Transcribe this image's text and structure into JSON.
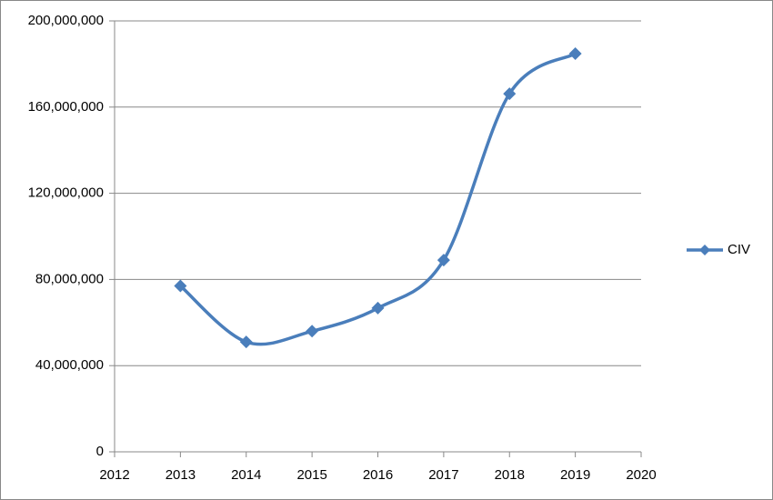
{
  "chart_data": {
    "type": "line",
    "x": [
      2013,
      2014,
      2015,
      2016,
      2017,
      2018,
      2019
    ],
    "series": [
      {
        "name": "CIV",
        "color": "#4a7ebb",
        "values": [
          77000000,
          51000000,
          56000000,
          66700000,
          89000000,
          166200000,
          184800000
        ]
      }
    ],
    "xlim": [
      2012,
      2020
    ],
    "xticks": [
      2012,
      2013,
      2014,
      2015,
      2016,
      2017,
      2018,
      2019,
      2020
    ],
    "ylim": [
      0,
      200000000
    ],
    "yticks": [
      0,
      {
        "value": 40000000,
        "label": "40,000,000"
      },
      {
        "value": 80000000,
        "label": "80,000,000"
      },
      {
        "value": 120000000,
        "label": "120,000,000"
      },
      {
        "value": 160000000,
        "label": "160,000,000"
      },
      {
        "value": 200000000,
        "label": "200,000,000"
      }
    ],
    "grid": true,
    "smooth": true,
    "legend": "right"
  }
}
